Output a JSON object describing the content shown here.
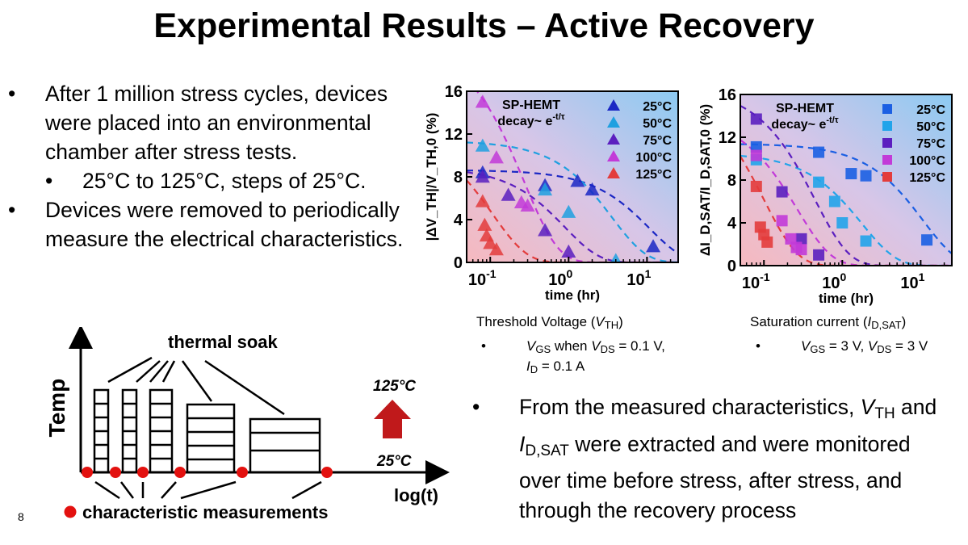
{
  "title": "Experimental Results – Active Recovery",
  "page_number": "8",
  "bullets": {
    "b1": "After 1 million stress cycles, devices were placed into an environmental chamber after stress tests.",
    "b1_sub": "25°C to 125°C, steps of 25°C.",
    "b2": "Devices were removed to periodically measure the electrical characteristics.",
    "bullet_char": "•"
  },
  "diagram": {
    "y_label": "Temp",
    "x_label": "log(t)",
    "soak_label": "thermal soak",
    "t_high": "125°C",
    "t_low": "25°C",
    "legend_text": "characteristic measurements",
    "colors": {
      "dot": "#e3110f",
      "arrow": "#c0191b"
    }
  },
  "right_bullet": {
    "p1": "From the measured characteristics, ",
    "vth_main": "V",
    "vth_sub": "TH",
    "p2": " and ",
    "id_main": "I",
    "id_sub": "D,SAT",
    "p3": " were extracted and were monitored over time before stress, after stress, and through the recovery process"
  },
  "captions": {
    "left_title_a": "Threshold Voltage (",
    "left_title_b": "V",
    "left_title_c": "TH",
    "left_title_d": ")",
    "left_cond_1": "V",
    "left_cond_1s": "GS",
    "left_cond_2": " when ",
    "left_cond_3": "V",
    "left_cond_3s": "DS",
    "left_cond_4": " = 0.1 V,",
    "left_cond_5": "I",
    "left_cond_5s": "D",
    "left_cond_6": " = 0.1 A",
    "right_title_a": "Saturation current (",
    "right_title_b": "I",
    "right_title_c": "D,SAT",
    "right_title_d": ")",
    "right_cond_1": "V",
    "right_cond_1s": "GS",
    "right_cond_2": " = 3 V, ",
    "right_cond_3": "V",
    "right_cond_3s": "DS",
    "right_cond_4": " = 3 V"
  },
  "chart_data": [
    {
      "type": "scatter",
      "marker": "triangle",
      "xlabel": "time (hr)",
      "ylabel": "|ΔV_TH|/V_TH,0 (%)",
      "x_scale": "log",
      "xlim": [
        0.05,
        25
      ],
      "ylim": [
        0,
        16
      ],
      "x_ticks": [
        "10",
        "10",
        "10"
      ],
      "x_tick_exps": [
        "-1",
        "0",
        "1"
      ],
      "x_tick_values": [
        0.1,
        1,
        10
      ],
      "y_ticks": [
        0,
        4,
        8,
        12,
        16
      ],
      "annotation_1": "SP-HEMT",
      "annotation_2": "decay~ e",
      "annotation_2_exp": "-t/τ",
      "legend_placement": "top-right",
      "series": [
        {
          "name": "25°C",
          "color": "#1b27c4",
          "x": [
            0.08,
            0.5,
            1.3,
            2.0,
            12
          ],
          "y": [
            8.4,
            7.2,
            7.6,
            6.8,
            1.5
          ]
        },
        {
          "name": "50°C",
          "color": "#1fa0e0",
          "x": [
            0.08,
            0.5,
            1.0,
            4.0
          ],
          "y": [
            10.9,
            6.8,
            4.7,
            0.2
          ]
        },
        {
          "name": "75°C",
          "color": "#5b1fbf",
          "x": [
            0.08,
            0.17,
            0.5,
            1.0
          ],
          "y": [
            8.0,
            6.3,
            3.0,
            1.0
          ]
        },
        {
          "name": "100°C",
          "color": "#c23ad8",
          "x": [
            0.08,
            0.12,
            0.25,
            0.3
          ],
          "y": [
            15.0,
            9.8,
            5.6,
            5.3
          ]
        },
        {
          "name": "125°C",
          "color": "#e33c3c",
          "x": [
            0.08,
            0.085,
            0.09,
            0.1,
            0.12
          ],
          "y": [
            5.7,
            3.5,
            2.5,
            1.8,
            1.2
          ]
        }
      ],
      "fit_lines": true
    },
    {
      "type": "scatter",
      "marker": "square",
      "xlabel": "time (hr)",
      "ylabel": "ΔI_D,SAT/I_D,SAT,0 (%)",
      "x_scale": "log",
      "xlim": [
        0.05,
        25
      ],
      "ylim": [
        0,
        16
      ],
      "x_ticks": [
        "10",
        "10",
        "10"
      ],
      "x_tick_exps": [
        "-1",
        "0",
        "1"
      ],
      "x_tick_values": [
        0.1,
        1,
        10
      ],
      "y_ticks": [
        0,
        4,
        8,
        12,
        16
      ],
      "annotation_1": "SP-HEMT",
      "annotation_2": "decay~ e",
      "annotation_2_exp": "-t/τ",
      "legend_placement": "top-right",
      "series": [
        {
          "name": "25°C",
          "color": "#1b5fe3",
          "x": [
            0.08,
            0.5,
            1.3,
            2.0,
            12
          ],
          "y": [
            11.1,
            10.6,
            8.6,
            8.4,
            2.4
          ]
        },
        {
          "name": "50°C",
          "color": "#21a4ea",
          "x": [
            0.08,
            0.5,
            0.8,
            1.0,
            2.0
          ],
          "y": [
            9.9,
            7.8,
            6.0,
            4.0,
            2.3
          ]
        },
        {
          "name": "75°C",
          "color": "#5b1fbf",
          "x": [
            0.08,
            0.17,
            0.3,
            0.5
          ],
          "y": [
            13.7,
            6.9,
            2.5,
            1.0
          ]
        },
        {
          "name": "100°C",
          "color": "#c23ad8",
          "x": [
            0.08,
            0.17,
            0.22,
            0.26,
            0.3
          ],
          "y": [
            10.3,
            4.2,
            2.5,
            1.7,
            1.5
          ]
        },
        {
          "name": "125°C",
          "color": "#e33c3c",
          "x": [
            0.08,
            0.09,
            0.1,
            0.11
          ],
          "y": [
            7.4,
            3.6,
            2.9,
            2.2
          ]
        }
      ],
      "fit_lines": true
    }
  ]
}
